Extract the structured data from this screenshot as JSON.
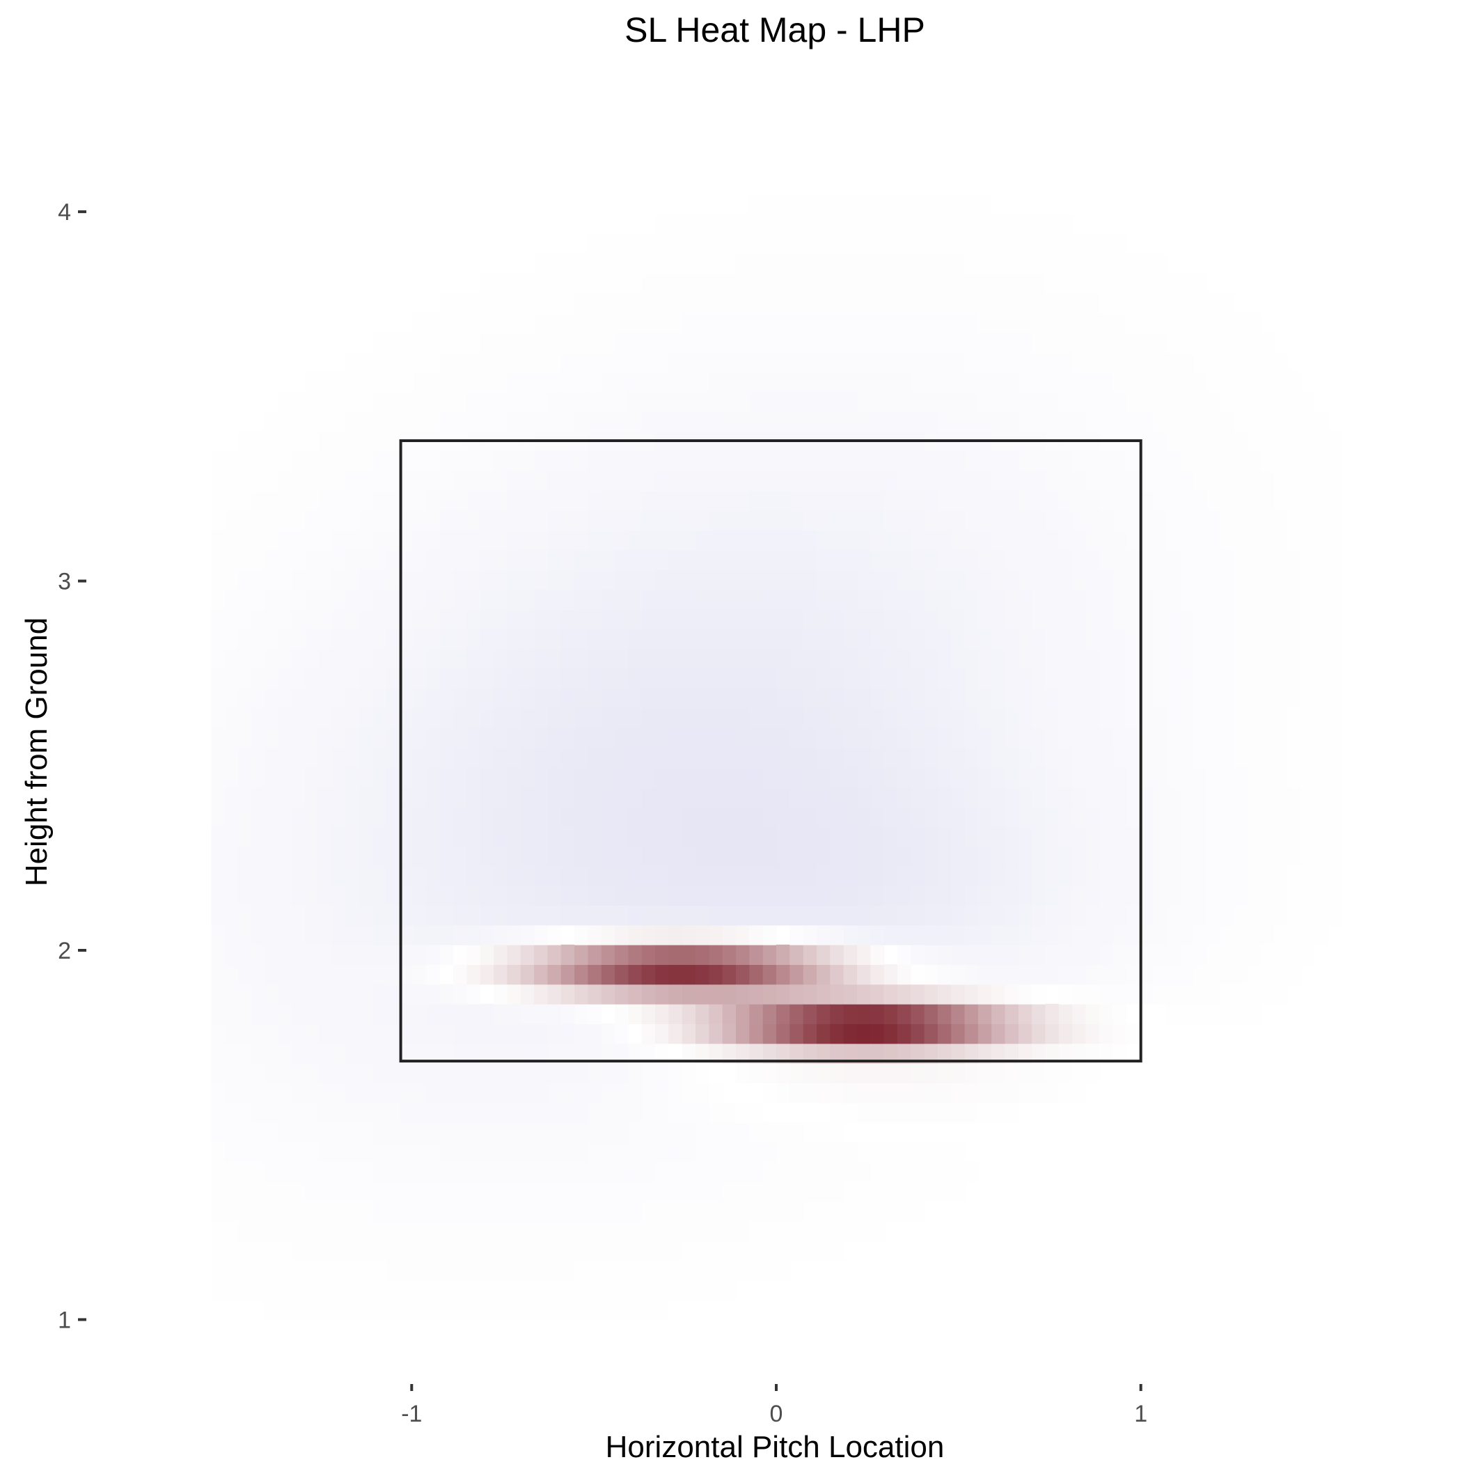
{
  "chart_data": {
    "type": "heatmap",
    "title": "SL Heat Map - LHP",
    "xlabel": "Horizontal Pitch Location",
    "ylabel": "Height from Ground",
    "xlim": [
      -1.9,
      1.9
    ],
    "ylim": [
      0.85,
      4.3
    ],
    "x_ticks": [
      {
        "value": -1,
        "label": "-1"
      },
      {
        "value": 0,
        "label": "0"
      },
      {
        "value": 1,
        "label": "1"
      }
    ],
    "y_ticks": [
      {
        "value": 1,
        "label": "1"
      },
      {
        "value": 2,
        "label": "2"
      },
      {
        "value": 3,
        "label": "3"
      },
      {
        "value": 4,
        "label": "4"
      }
    ],
    "strike_zone": {
      "x_min": -1.03,
      "x_max": 1.0,
      "z_min": 1.7,
      "z_max": 3.38
    },
    "color_scale": {
      "low": "#3b3bb0",
      "mid": "#ffffff",
      "high": "#67000d"
    },
    "density_components": [
      {
        "x": -0.3,
        "y": 2.5,
        "sx": 0.75,
        "sy": 0.6,
        "rho": 0.3,
        "value": -0.11
      },
      {
        "x": 0.3,
        "y": 2.15,
        "sx": 0.5,
        "sy": 0.25,
        "rho": 0.0,
        "value": -0.05
      },
      {
        "x": -0.26,
        "y": 1.95,
        "sx": 0.28,
        "sy": 0.05,
        "rho": 0.0,
        "value": 0.92
      },
      {
        "x": 0.24,
        "y": 1.8,
        "sx": 0.26,
        "sy": 0.045,
        "rho": 0.0,
        "value": 1.0
      },
      {
        "x": 0.2,
        "y": 1.68,
        "sx": 0.4,
        "sy": 0.1,
        "rho": 0.0,
        "value": 0.05
      }
    ],
    "grid": false,
    "legend": "none"
  }
}
